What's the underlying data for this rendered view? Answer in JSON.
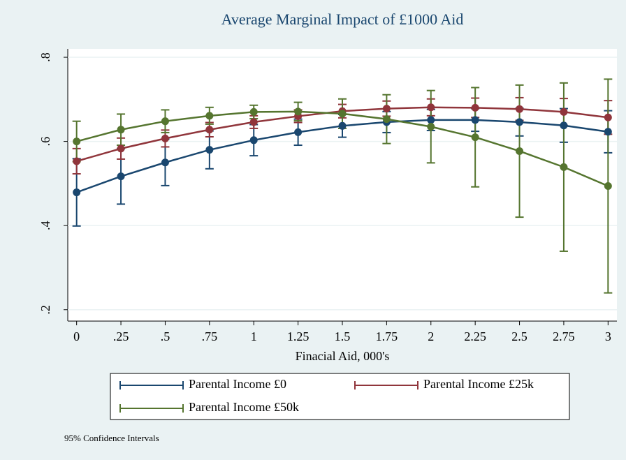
{
  "chart_data": {
    "type": "line",
    "title": "Average Marginal Impact of £1000 Aid",
    "x_label": "Finacial Aid, 000's",
    "note": "95% Confidence Intervals",
    "x": [
      0,
      0.25,
      0.5,
      0.75,
      1,
      1.25,
      1.5,
      1.75,
      2,
      2.25,
      2.5,
      2.75,
      3
    ],
    "series": [
      {
        "name": "Parental Income £0",
        "color": "#1a476f",
        "values": [
          0.479,
          0.517,
          0.55,
          0.58,
          0.603,
          0.622,
          0.637,
          0.646,
          0.651,
          0.651,
          0.646,
          0.638,
          0.623
        ],
        "errors": [
          0.08,
          0.066,
          0.055,
          0.045,
          0.037,
          0.031,
          0.027,
          0.025,
          0.025,
          0.027,
          0.033,
          0.04,
          0.05
        ]
      },
      {
        "name": "Parental Income £25k",
        "color": "#90353b",
        "values": [
          0.553,
          0.583,
          0.607,
          0.628,
          0.646,
          0.66,
          0.672,
          0.678,
          0.681,
          0.68,
          0.677,
          0.67,
          0.657
        ],
        "errors": [
          0.03,
          0.025,
          0.02,
          0.017,
          0.015,
          0.015,
          0.016,
          0.018,
          0.02,
          0.023,
          0.027,
          0.032,
          0.04
        ]
      },
      {
        "name": "Parental Income £50k",
        "color": "#55752f",
        "values": [
          0.6,
          0.628,
          0.648,
          0.661,
          0.67,
          0.671,
          0.666,
          0.653,
          0.635,
          0.61,
          0.577,
          0.539,
          0.494
        ],
        "errors": [
          0.048,
          0.037,
          0.027,
          0.02,
          0.016,
          0.022,
          0.035,
          0.058,
          0.086,
          0.118,
          0.157,
          0.2,
          0.254
        ]
      }
    ],
    "xlim": [
      -0.05,
      3.05
    ],
    "ylim": [
      0.173,
      0.82
    ],
    "xticks": [
      0,
      {
        "value": 0.25,
        "label": ".25"
      },
      {
        "value": 0.5,
        "label": ".5"
      },
      {
        "value": 0.75,
        "label": ".75"
      },
      1,
      1.25,
      1.5,
      1.75,
      2,
      2.25,
      2.5,
      2.75,
      3
    ],
    "yticks": [
      {
        "value": 0.2,
        "label": ".2"
      },
      {
        "value": 0.4,
        "label": ".4"
      },
      {
        "value": 0.6,
        "label": ".6"
      },
      {
        "value": 0.8,
        "label": ".8"
      }
    ],
    "grid": true
  }
}
